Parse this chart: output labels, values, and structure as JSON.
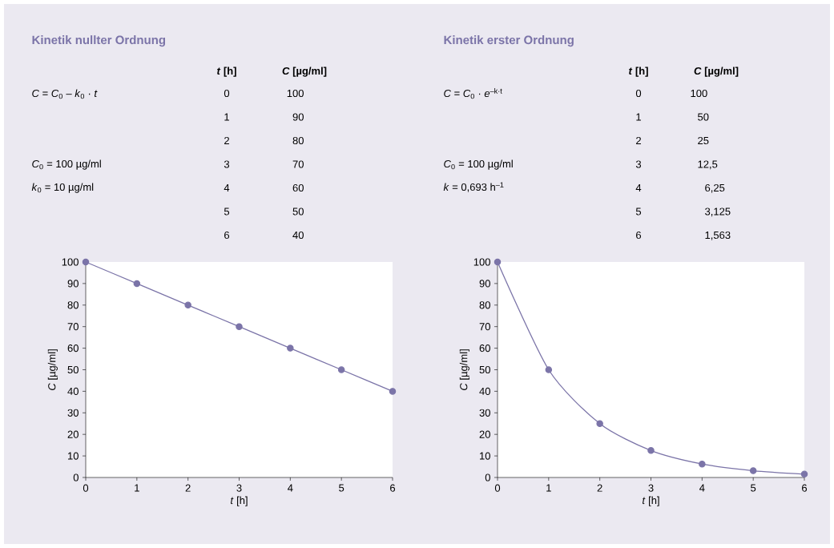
{
  "chart_data": [
    {
      "type": "line",
      "title": "Kinetik nullter Ordnung",
      "xlabel": "*t* [h]",
      "ylabel": "*C* [µg/ml]",
      "annotations": [
        "*t* [h]",
        "*C* [µg/ml]",
        "*C* = *C*$_{0}$ – *k*$_{0}$ · *t*",
        "*C*$_{0}$ = 100 µg/ml",
        "*k*$_{0}$ = 10 µg/ml",
        "0",
        "1",
        "2",
        "3",
        "4",
        "5",
        "6",
        "100",
        "90",
        "80",
        "70",
        "60",
        "50",
        "40"
      ],
      "x": [
        0,
        1,
        2,
        3,
        4,
        5,
        6
      ],
      "values": [
        100,
        90,
        80,
        70,
        60,
        50,
        40
      ],
      "color": "#7b74a8",
      "marker": "circle",
      "line_style": "solid",
      "xlim": [
        0,
        6
      ],
      "ylim": [
        0,
        100
      ],
      "xticks": [
        0,
        1,
        2,
        3,
        4,
        5,
        6
      ],
      "yticks": [
        0,
        10,
        20,
        30,
        40,
        50,
        60,
        70,
        80,
        90,
        100
      ]
    },
    {
      "type": "line",
      "title": "Kinetik erster Ordnung",
      "xlabel": "*t* [h]",
      "ylabel": "*C* [µg/ml]",
      "annotations": [
        "*t* [h]",
        "*C* [µg/ml]",
        "*C* = *C*$_{0}$ · *e*$^{–k·t}$",
        "*C*$_{0}$ = 100 µg/ml",
        "*k* = 0,693 h$^{–1}$",
        "0",
        "1",
        "2",
        "3",
        "4",
        "5",
        "6",
        "100",
        "50",
        "25",
        "12,5",
        "6,25",
        "3,125",
        "1,563"
      ],
      "x": [
        0,
        1,
        2,
        3,
        4,
        5,
        6
      ],
      "values": [
        100,
        50,
        25,
        12.5,
        6.25,
        3.125,
        1.563
      ],
      "color": "#7b74a8",
      "marker": "circle",
      "line_style": "solid",
      "xlim": [
        0,
        6
      ],
      "ylim": [
        0,
        100
      ],
      "xticks": [
        0,
        1,
        2,
        3,
        4,
        5,
        6
      ],
      "yticks": [
        0,
        10,
        20,
        30,
        40,
        50,
        60,
        70,
        80,
        90,
        100
      ]
    }
  ]
}
